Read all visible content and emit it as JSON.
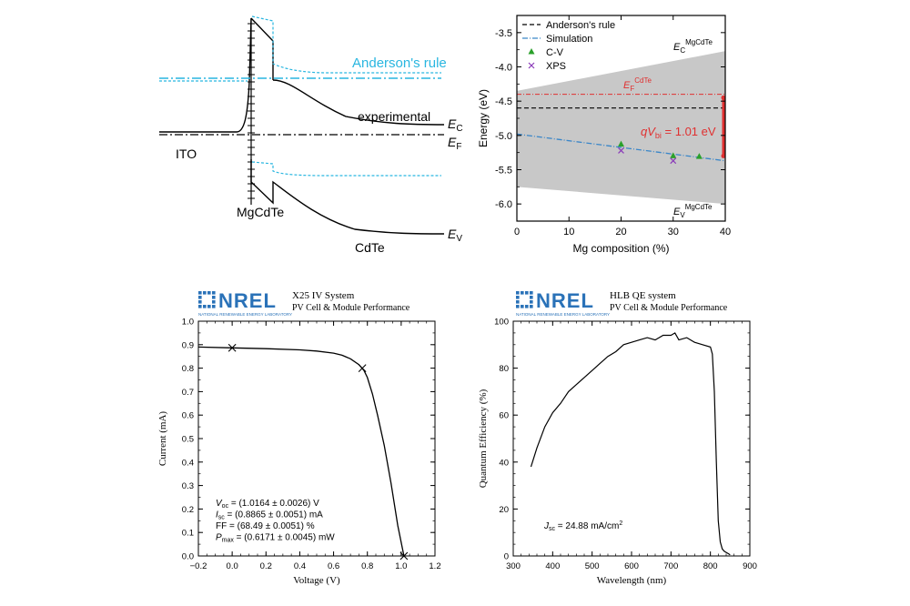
{
  "chart_data": [
    {
      "type": "band-diagram",
      "labels": {
        "anderson": "Anderson's rule",
        "experimental": "experimental",
        "ito": "ITO",
        "mgcdte": "MgCdTe",
        "cdte": "CdTe",
        "ec": "E",
        "ec_sub": "C",
        "ef": "E",
        "ef_sub": "F",
        "ev": "E",
        "ev_sub": "V"
      },
      "colors": {
        "experimental": "#000000",
        "anderson": "#29b6e0"
      }
    },
    {
      "type": "scatter",
      "xlabel": "Mg composition (%)",
      "ylabel": "Energy (eV)",
      "xlim": [
        0,
        40
      ],
      "ylim": [
        -6.25,
        -3.25
      ],
      "xticks": [
        0,
        10,
        20,
        30,
        40
      ],
      "yticks": [
        -3.5,
        -4.0,
        -4.5,
        -5.0,
        -5.5,
        -6.0
      ],
      "ytick_labels": [
        "-3.5",
        "-4.0",
        "-4.5",
        "-5.0",
        "-5.5",
        "-6.0"
      ],
      "band_top": {
        "x": [
          0,
          40
        ],
        "y": [
          -4.35,
          -3.77
        ]
      },
      "band_bottom": {
        "x": [
          0,
          40
        ],
        "y": [
          -5.75,
          -6.0
        ]
      },
      "anderson_line_y": -4.6,
      "fermi_line_y": -4.4,
      "simulation": {
        "x": [
          0,
          40
        ],
        "y": [
          -4.98,
          -5.37
        ]
      },
      "series": [
        {
          "name": "C-V",
          "x": [
            20,
            30,
            35
          ],
          "y": [
            -5.13,
            -5.3,
            -5.31
          ]
        },
        {
          "name": "XPS",
          "x": [
            20,
            30
          ],
          "y": [
            -5.22,
            -5.37
          ]
        }
      ],
      "legend": [
        "Anderson's rule",
        "Simulation",
        "C-V",
        "XPS"
      ],
      "annotations": {
        "ec_main": "E",
        "ec_sub": "C",
        "ec_sup": "MgCdTe",
        "ef_main": "E",
        "ef_sub": "F",
        "ef_sup": "CdTe",
        "ev_main": "E",
        "ev_sub": "V",
        "ev_sup": "MgCdTe",
        "qvbi_pre": "qV",
        "qvbi_sub": "bi",
        "qvbi_post": " = 1.01 eV"
      },
      "vbi_range": [
        -4.45,
        -5.3
      ],
      "colors": {
        "band": "#c8c8c8",
        "simulation": "#3a86c8",
        "fermi": "#e03030",
        "cv": "#2aa02a",
        "xps": "#8a3ab9"
      }
    },
    {
      "type": "line",
      "logo": "NREL",
      "logo_subtitle": "NATIONAL RENEWABLE ENERGY LABORATORY",
      "system_title": "X25 IV System",
      "system_subtitle": "PV Cell & Module Performance",
      "xlabel": "Voltage (V)",
      "ylabel": "Current (mA)",
      "xlim": [
        -0.2,
        1.2
      ],
      "ylim": [
        0.0,
        1.0
      ],
      "xticks": [
        -0.2,
        0.0,
        0.2,
        0.4,
        0.6,
        0.8,
        1.0,
        1.2
      ],
      "xtick_labels": [
        "−0.2",
        "0.0",
        "0.2",
        "0.4",
        "0.6",
        "0.8",
        "1.0",
        "1.2"
      ],
      "yticks": [
        0.0,
        0.1,
        0.2,
        0.3,
        0.4,
        0.5,
        0.6,
        0.7,
        0.8,
        0.9,
        1.0
      ],
      "ytick_labels": [
        "0.0",
        "0.1",
        "0.2",
        "0.3",
        "0.4",
        "0.5",
        "0.6",
        "0.7",
        "0.8",
        "0.9",
        "1.0"
      ],
      "x": [
        -0.2,
        0.0,
        0.2,
        0.4,
        0.5,
        0.6,
        0.65,
        0.7,
        0.75,
        0.78,
        0.8,
        0.83,
        0.86,
        0.9,
        0.94,
        0.98,
        1.0164
      ],
      "y": [
        0.89,
        0.8865,
        0.883,
        0.878,
        0.873,
        0.864,
        0.855,
        0.84,
        0.815,
        0.79,
        0.76,
        0.69,
        0.6,
        0.47,
        0.31,
        0.13,
        0.0
      ],
      "markers": {
        "x": [
          0.0,
          0.77,
          1.0164
        ],
        "y": [
          0.8865,
          0.8,
          0.0
        ]
      },
      "stats": [
        {
          "pre": "V",
          "sub": "oc",
          "text": " = (1.0164 ± 0.0026) V"
        },
        {
          "pre": "I",
          "sub": "sc",
          "text": " = (0.8865 ± 0.0051)  mA"
        },
        {
          "pre": "FF",
          "sub": "",
          "text": " = (68.49 ± 0.0051)  %"
        },
        {
          "pre": "P",
          "sub": "max",
          "text": " = (0.6171 ± 0.0045) mW"
        }
      ]
    },
    {
      "type": "line",
      "logo": "NREL",
      "logo_subtitle": "NATIONAL RENEWABLE ENERGY LABORATORY",
      "system_title": "HLB QE system",
      "system_subtitle": "PV Cell & Module Performance",
      "xlabel": "Wavelength (nm)",
      "ylabel": "Quantum Efficiency (%)",
      "xlim": [
        300,
        900
      ],
      "ylim": [
        0,
        100
      ],
      "xticks": [
        300,
        400,
        500,
        600,
        700,
        800,
        900
      ],
      "yticks": [
        0,
        20,
        40,
        60,
        80,
        100
      ],
      "x": [
        345,
        360,
        380,
        400,
        420,
        440,
        460,
        480,
        500,
        520,
        540,
        560,
        580,
        600,
        620,
        640,
        660,
        680,
        700,
        710,
        720,
        740,
        760,
        780,
        800,
        805,
        810,
        815,
        820,
        825,
        830,
        835,
        840,
        845,
        850
      ],
      "y": [
        38,
        46,
        55,
        61,
        65,
        70,
        73,
        76,
        79,
        82,
        85,
        87,
        90,
        91,
        92,
        93,
        92,
        94,
        94,
        95,
        92,
        93,
        91,
        90,
        89,
        86,
        70,
        40,
        15,
        6,
        3,
        2,
        1.5,
        1,
        0.5
      ],
      "annotation": {
        "pre": "J",
        "sub": "sc",
        "text": " = 24.88 mA/cm",
        "sup": "2"
      }
    }
  ]
}
